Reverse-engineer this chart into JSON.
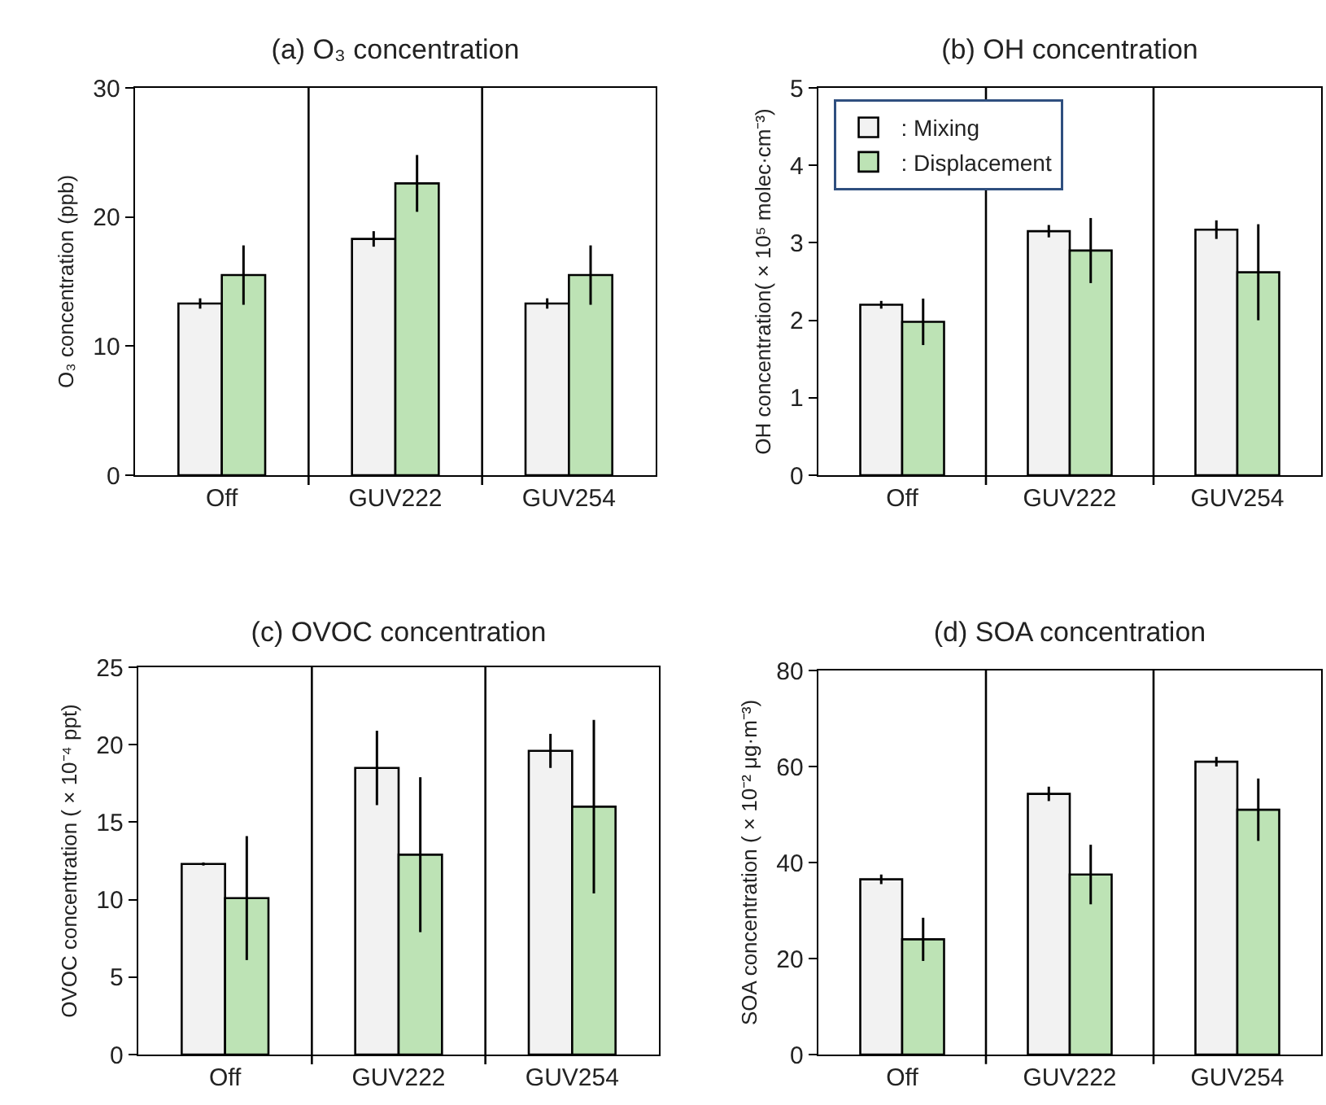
{
  "chart_data": [
    {
      "type": "bar",
      "title": "(a) O₃ concentration",
      "ylabel": "O₃ concentration (ppb)",
      "categories": [
        "Off",
        "GUV222",
        "GUV254"
      ],
      "ylim": [
        0,
        30
      ],
      "yticks": [
        0,
        10,
        20,
        30
      ],
      "grid": "x",
      "series": [
        {
          "color": "#f2f2f2",
          "values": [
            13.3,
            18.3,
            13.3
          ],
          "errors": [
            0.4,
            0.6,
            0.4
          ]
        },
        {
          "color": "#bde3b5",
          "values": [
            15.5,
            22.6,
            15.5
          ],
          "errors": [
            2.3,
            2.2,
            2.3
          ]
        }
      ]
    },
    {
      "type": "bar",
      "title": "(b) OH concentration",
      "ylabel": "OH concentration( × 10⁵ molec·cm⁻³)",
      "categories": [
        "Off",
        "GUV222",
        "GUV254"
      ],
      "ylim": [
        0,
        5
      ],
      "yticks": [
        0,
        1,
        2,
        3,
        4,
        5
      ],
      "grid": "x",
      "legend": "top left",
      "series": [
        {
          "name": ": Mixing",
          "color": "#f2f2f2",
          "values": [
            2.2,
            3.15,
            3.17
          ],
          "errors": [
            0.05,
            0.08,
            0.12
          ]
        },
        {
          "name": ": Displacement",
          "color": "#bde3b5",
          "values": [
            1.98,
            2.9,
            2.62
          ],
          "errors": [
            0.3,
            0.42,
            0.62
          ]
        }
      ]
    },
    {
      "type": "bar",
      "title": "(c) OVOC concentration",
      "ylabel": "OVOC concentration ( × 10⁻⁴ ppt)",
      "categories": [
        "Off",
        "GUV222",
        "GUV254"
      ],
      "ylim": [
        0,
        25
      ],
      "yticks": [
        0,
        5,
        10,
        15,
        20,
        25
      ],
      "grid": "x",
      "series": [
        {
          "color": "#f2f2f2",
          "values": [
            12.3,
            18.5,
            19.6
          ],
          "errors": [
            0.1,
            2.4,
            1.1
          ]
        },
        {
          "color": "#bde3b5",
          "values": [
            10.1,
            12.9,
            16
          ],
          "errors": [
            4,
            5,
            5.6
          ]
        }
      ]
    },
    {
      "type": "bar",
      "title": "(d) SOA concentration",
      "ylabel": "SOA concentration ( × 10⁻² μg·m⁻³)",
      "categories": [
        "Off",
        "GUV222",
        "GUV254"
      ],
      "ylim": [
        0,
        80
      ],
      "yticks": [
        0,
        20,
        40,
        60,
        80
      ],
      "grid": "x",
      "series": [
        {
          "color": "#f2f2f2",
          "values": [
            36.5,
            54.3,
            61
          ],
          "errors": [
            1,
            1.5,
            1
          ]
        },
        {
          "color": "#bde3b5",
          "values": [
            24,
            37.5,
            51
          ],
          "errors": [
            4.5,
            6.2,
            6.5
          ]
        }
      ]
    }
  ]
}
